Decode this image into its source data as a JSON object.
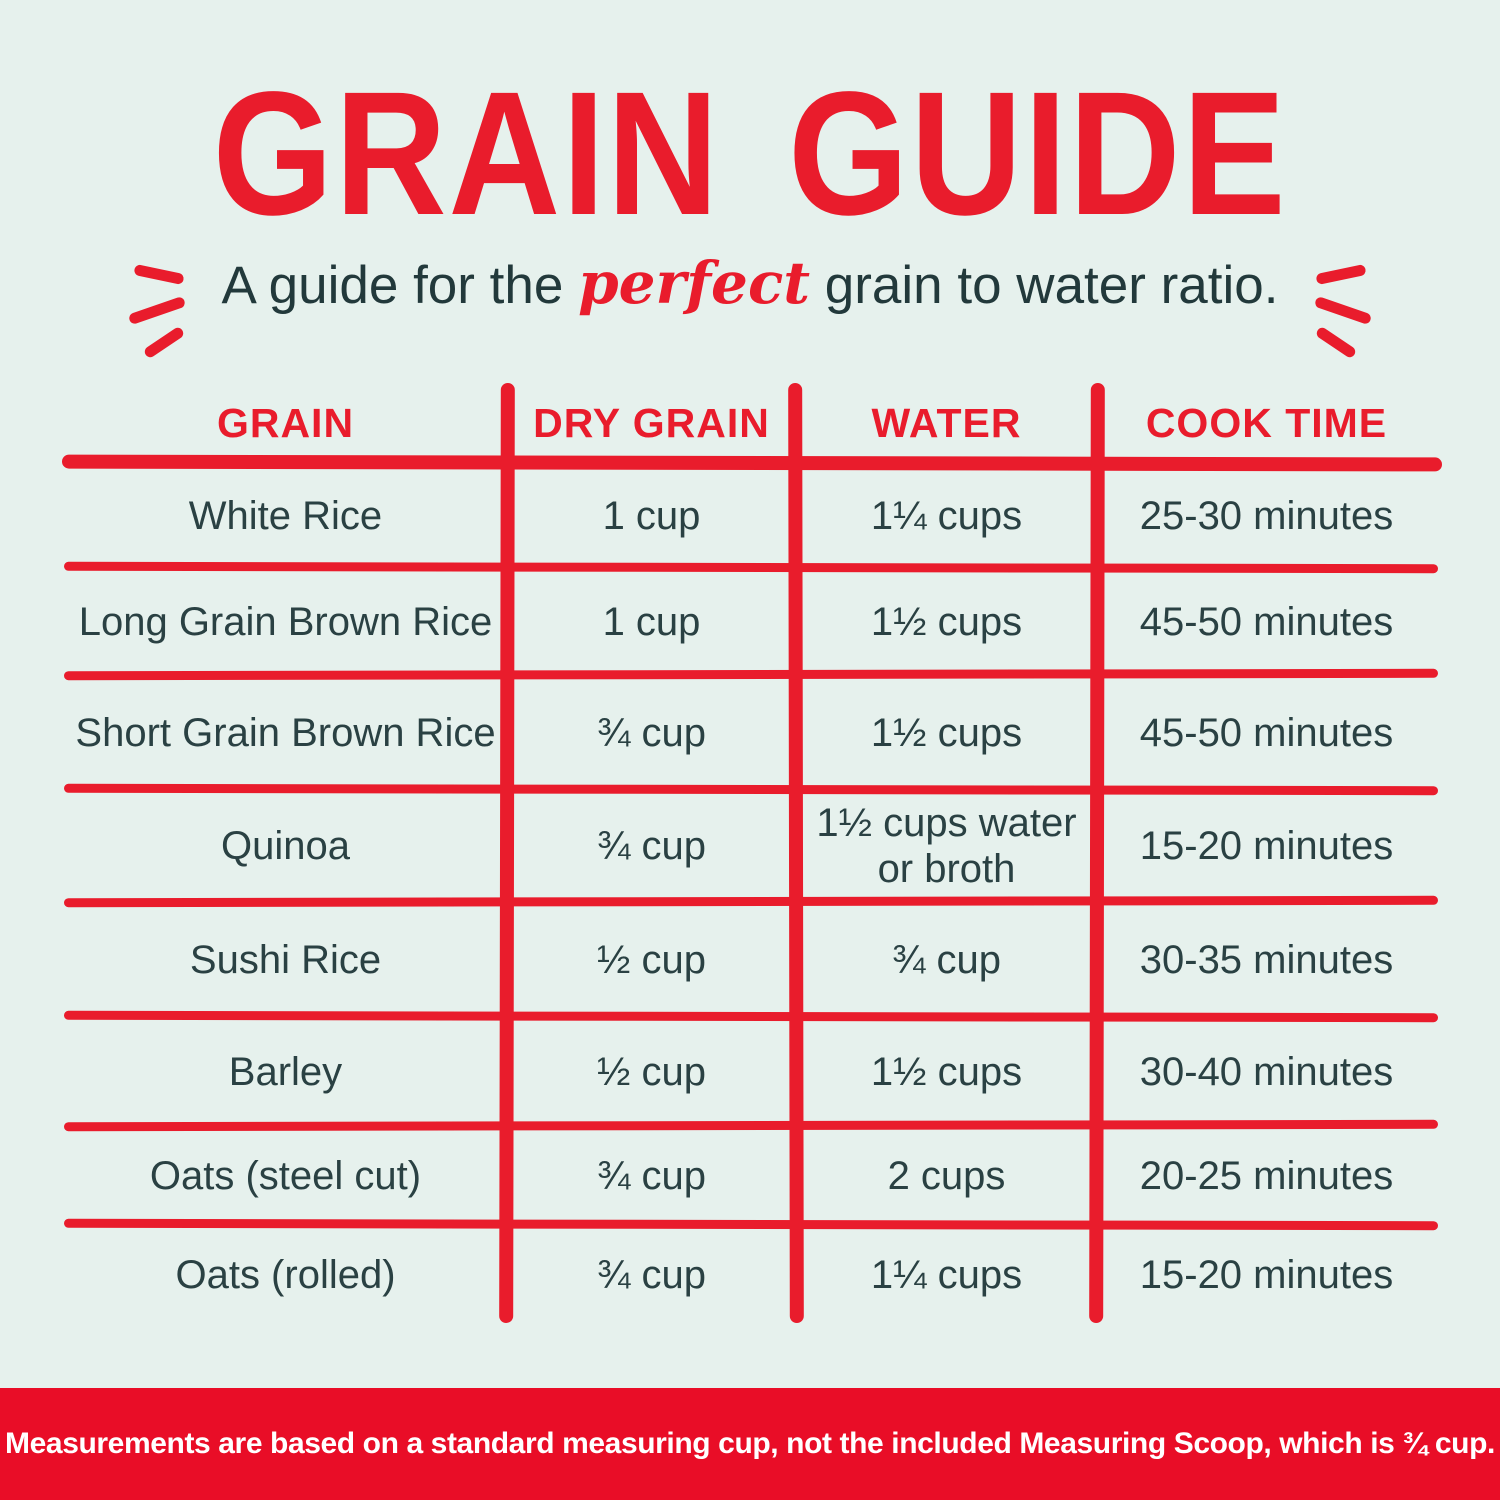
{
  "colors": {
    "background": "#e6f1ed",
    "accent_red": "#e91c2c",
    "footer_red": "#e90d27",
    "dark_text": "#2a4143",
    "footer_text": "#ffffff"
  },
  "header": {
    "title": "GRAIN GUIDE",
    "subtitle": {
      "prefix": "A guide for the ",
      "highlight": "perfect",
      "suffix": " grain to water ratio."
    },
    "left_icon": "emphasis-strokes",
    "right_icon": "emphasis-strokes"
  },
  "table": {
    "columns": [
      {
        "key": "grain",
        "label": "GRAIN"
      },
      {
        "key": "dry",
        "label": "DRY GRAIN"
      },
      {
        "key": "water",
        "label": "WATER"
      },
      {
        "key": "cook",
        "label": "COOK TIME"
      }
    ],
    "rows": [
      {
        "grain": "White Rice",
        "dry": "1 cup",
        "water": "1¼ cups",
        "cook": "25-30 minutes"
      },
      {
        "grain": "Long Grain Brown Rice",
        "dry": "1 cup",
        "water": "1½ cups",
        "cook": "45-50 minutes"
      },
      {
        "grain": "Short Grain Brown Rice",
        "dry": "¾ cup",
        "water": "1½ cups",
        "cook": "45-50 minutes"
      },
      {
        "grain": "Quinoa",
        "dry": "¾ cup",
        "water": "1½ cups water or broth",
        "cook": "15-20 minutes"
      },
      {
        "grain": "Sushi Rice",
        "dry": "½ cup",
        "water": "¾ cup",
        "cook": "30-35 minutes"
      },
      {
        "grain": "Barley",
        "dry": "½ cup",
        "water": "1½ cups",
        "cook": "30-40 minutes"
      },
      {
        "grain": "Oats (steel cut)",
        "dry": "¾ cup",
        "water": "2 cups",
        "cook": "20-25 minutes"
      },
      {
        "grain": "Oats (rolled)",
        "dry": "¾ cup",
        "water": "1¼ cups",
        "cook": "15-20 minutes"
      }
    ]
  },
  "footer": {
    "note": "Measurements are based on a standard measuring cup, not the included Measuring Scoop, which is ¾ cup."
  }
}
